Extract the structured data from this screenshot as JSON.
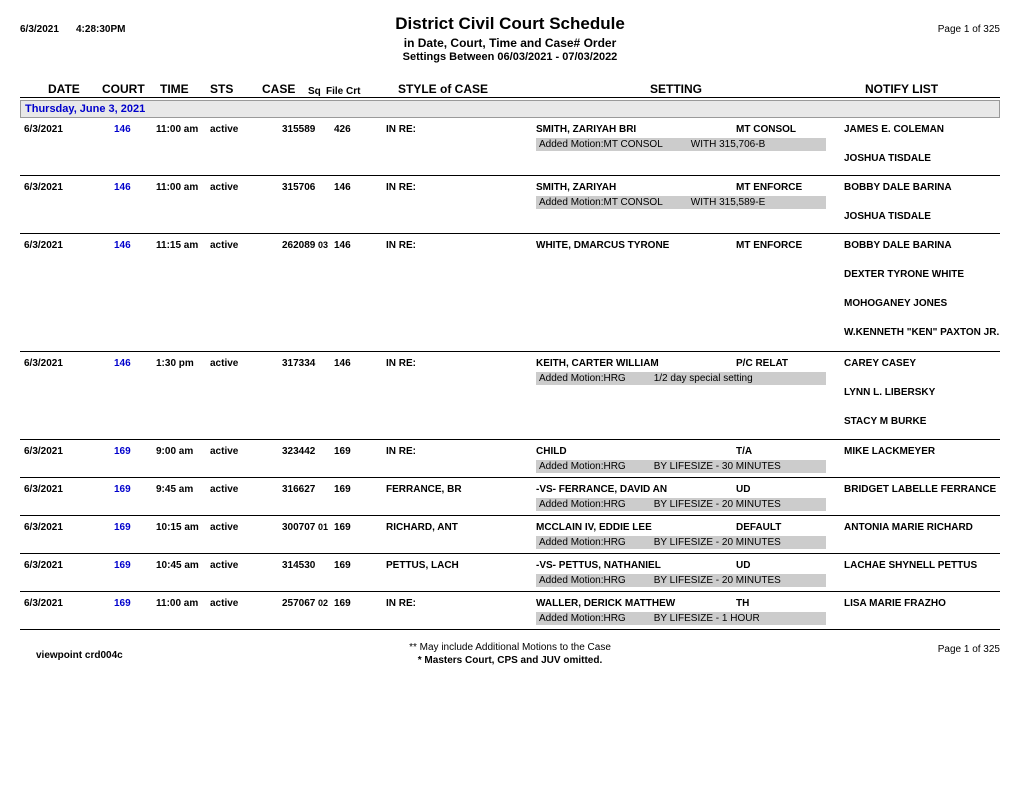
{
  "meta": {
    "print_date": "6/3/2021",
    "print_time": "4:28:30PM",
    "page_label_top": "Page 1 of 325",
    "page_label_bottom": "Page 1 of 325",
    "viewpoint": "viewpoint  crd004c"
  },
  "title": {
    "main": "District Civil Court Schedule",
    "sub": "in Date,  Court, Time  and Case# Order",
    "range": "Settings Between 06/03/2021 - 07/03/2022"
  },
  "columns": {
    "date": "DATE",
    "court": "COURT",
    "time": "TIME",
    "sts": "STS",
    "case": "CASE",
    "sq": "Sq",
    "filecrt": "File Crt",
    "style": "STYLE of CASE",
    "setting": "SETTING",
    "notify": "NOTIFY LIST"
  },
  "day_header": "Thursday, June 3, 2021",
  "entries": [
    {
      "date": "6/3/2021",
      "court": "146",
      "time": "11:00 am",
      "sts": "active",
      "case": "315589",
      "sq": "",
      "filecrt": "426",
      "inre": "IN RE:",
      "style": "SMITH, ZARIYAH BRI",
      "setting": "MT CONSOL",
      "motion_label": "Added Motion:MT CONSOL",
      "motion_value": "WITH 315,706-B",
      "notify": [
        "JAMES E.  COLEMAN",
        "JOSHUA  TISDALE"
      ]
    },
    {
      "date": "6/3/2021",
      "court": "146",
      "time": "11:00 am",
      "sts": "active",
      "case": "315706",
      "sq": "",
      "filecrt": "146",
      "inre": "IN RE:",
      "style": "SMITH, ZARIYAH",
      "setting": "MT ENFORCE",
      "motion_label": "Added Motion:MT CONSOL",
      "motion_value": "WITH 315,589-E",
      "notify": [
        "BOBBY DALE  BARINA",
        "JOSHUA  TISDALE"
      ]
    },
    {
      "date": "6/3/2021",
      "court": "146",
      "time": "11:15 am",
      "sts": "active",
      "case": "262089",
      "sq": "03",
      "filecrt": "146",
      "inre": "IN RE:",
      "style": "WHITE, DMARCUS TYRONE",
      "setting": "MT ENFORCE",
      "motion_label": "",
      "motion_value": "",
      "notify": [
        "BOBBY DALE  BARINA",
        "DEXTER TYRONE  WHITE",
        "MOHOGANEY  JONES",
        "W.KENNETH \"KEN\"  PAXTON JR."
      ]
    },
    {
      "date": "6/3/2021",
      "court": "146",
      "time": "1:30 pm",
      "sts": "active",
      "case": "317334",
      "sq": "",
      "filecrt": "146",
      "inre": "IN RE:",
      "style": "KEITH, CARTER WILLIAM",
      "setting": "P/C RELAT",
      "motion_label": "Added Motion:HRG",
      "motion_value": "1/2 day special setting",
      "notify": [
        "CAREY  CASEY",
        "LYNN L.  LIBERSKY",
        "STACY M  BURKE"
      ]
    },
    {
      "date": "6/3/2021",
      "court": "169",
      "time": "9:00 am",
      "sts": "active",
      "case": "323442",
      "sq": "",
      "filecrt": "169",
      "inre": "IN RE:",
      "style": "CHILD",
      "setting": "T/A",
      "motion_label": "Added Motion:HRG",
      "motion_value": "BY LIFESIZE - 30 MINUTES",
      "notify": [
        "MIKE  LACKMEYER"
      ]
    },
    {
      "date": "6/3/2021",
      "court": "169",
      "time": "9:45 am",
      "sts": "active",
      "case": "316627",
      "sq": "",
      "filecrt": "169",
      "inre": "FERRANCE, BR",
      "style": "-VS- FERRANCE, DAVID AN",
      "setting": "UD",
      "motion_label": "Added Motion:HRG",
      "motion_value": "BY LIFESIZE - 20 MINUTES",
      "notify": [
        "BRIDGET LABELLE  FERRANCE"
      ]
    },
    {
      "date": "6/3/2021",
      "court": "169",
      "time": "10:15 am",
      "sts": "active",
      "case": "300707",
      "sq": "01",
      "filecrt": "169",
      "inre": "RICHARD, ANT",
      "style": "MCCLAIN IV, EDDIE LEE",
      "setting": "DEFAULT",
      "motion_label": "Added Motion:HRG",
      "motion_value": "BY LIFESIZE - 20 MINUTES",
      "notify": [
        "ANTONIA MARIE  RICHARD"
      ]
    },
    {
      "date": "6/3/2021",
      "court": "169",
      "time": "10:45 am",
      "sts": "active",
      "case": "314530",
      "sq": "",
      "filecrt": "169",
      "inre": "PETTUS, LACH",
      "style": "-VS- PETTUS, NATHANIEL",
      "setting": "UD",
      "motion_label": "Added Motion:HRG",
      "motion_value": "BY LIFESIZE - 20 MINUTES",
      "notify": [
        "LACHAE SHYNELL  PETTUS"
      ]
    },
    {
      "date": "6/3/2021",
      "court": "169",
      "time": "11:00 am",
      "sts": "active",
      "case": "257067",
      "sq": "02",
      "filecrt": "169",
      "inre": "IN RE:",
      "style": "WALLER, DERICK MATTHEW",
      "setting": "TH",
      "motion_label": "Added Motion:HRG",
      "motion_value": "BY LIFESIZE - 1 HOUR",
      "notify": [
        "LISA MARIE  FRAZHO"
      ]
    }
  ],
  "footer": {
    "line1": "** May include Additional Motions to the Case",
    "line2": "* Masters Court, CPS and JUV omitted."
  },
  "styling": {
    "court_color": "#0000cc",
    "motion_bg": "#cccccc",
    "dayheader_bg": "#e8e8e8"
  }
}
